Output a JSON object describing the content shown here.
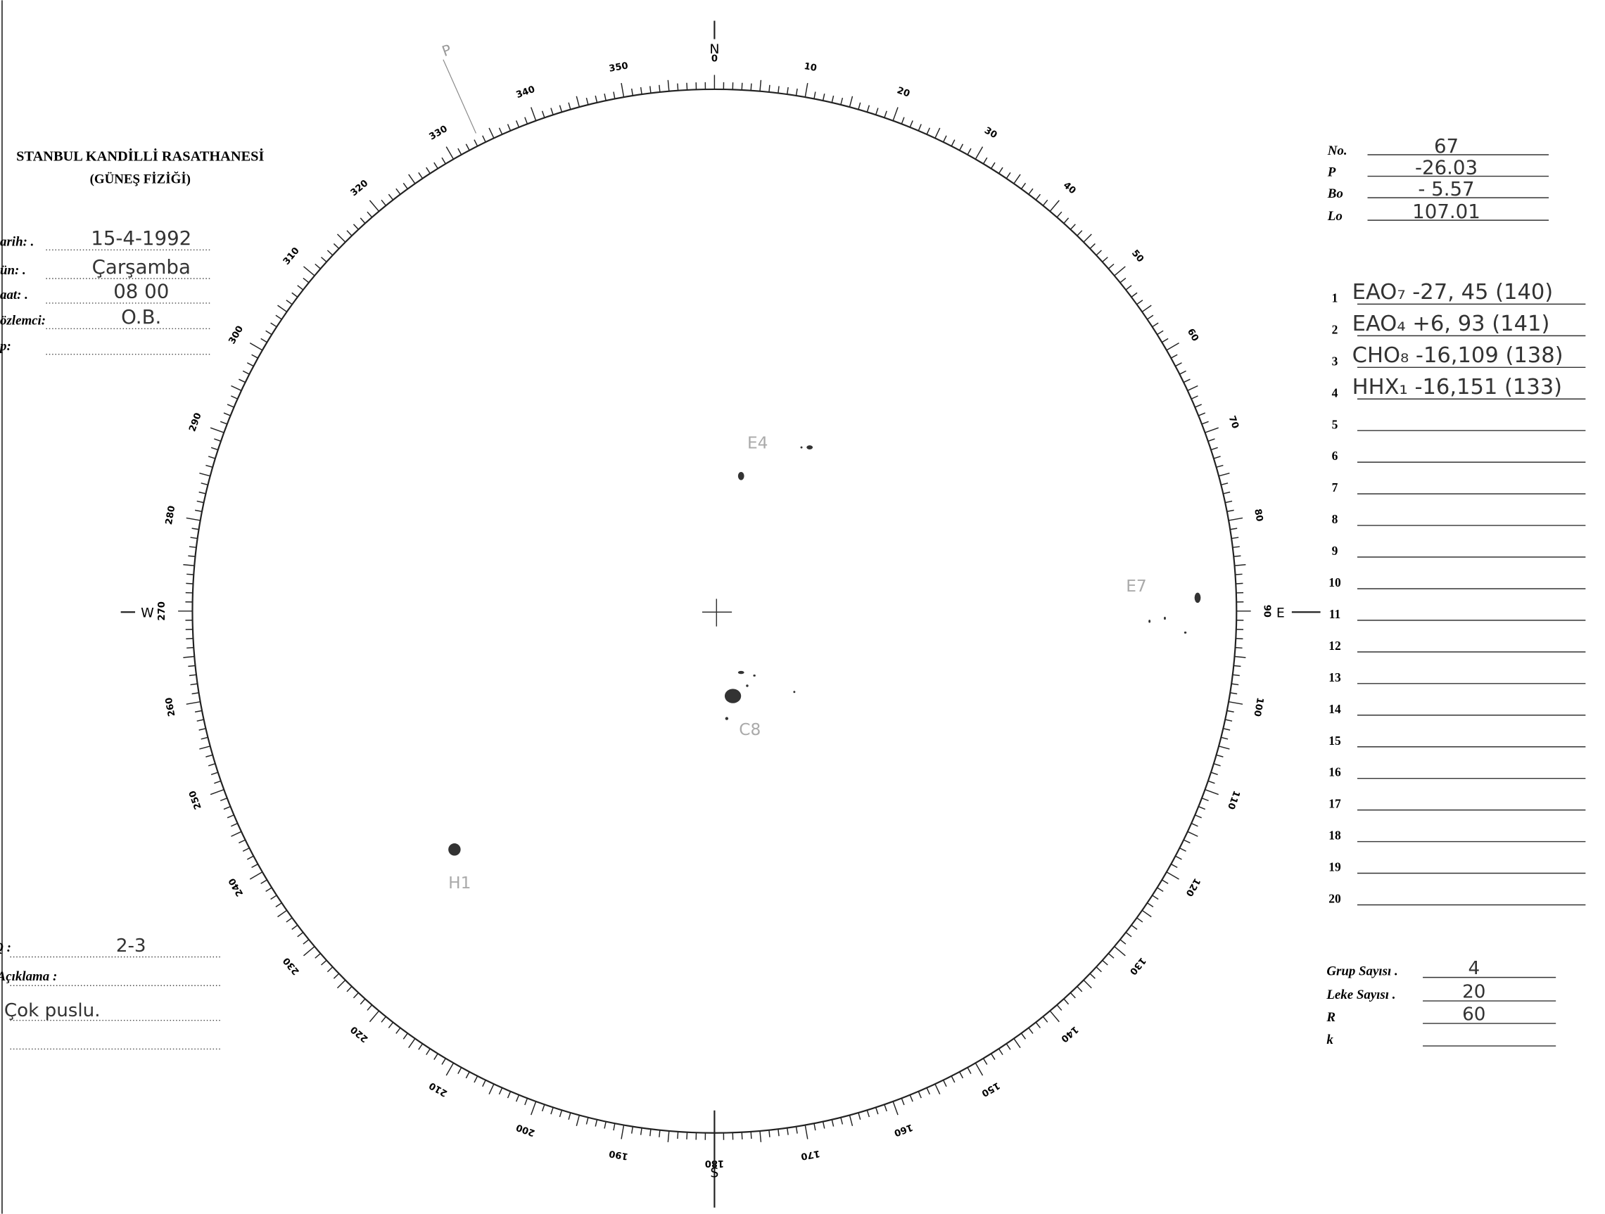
{
  "header": {
    "title": "STANBUL KANDİLLİ RASATHANESİ",
    "subtitle": "(GÜNEŞ FİZİĞİ)"
  },
  "observation": [
    {
      "label": "arih: .",
      "value": "15-4-1992"
    },
    {
      "label": "ün: .",
      "value": "Çarşamba"
    },
    {
      "label": "aat: .",
      "value": "08 00"
    },
    {
      "label": "özlemci:",
      "value": "O.B."
    },
    {
      "label": "p:"
    }
  ],
  "notes": {
    "q_label": "Q :",
    "q_value": "2-3",
    "description_label": "Açıklama :",
    "description": "Çok puslu."
  },
  "parameters": [
    {
      "label": "No.",
      "value": "67"
    },
    {
      "label": "P",
      "value": "-26.03"
    },
    {
      "label": "Bo",
      "value": "- 5.57"
    },
    {
      "label": "Lo",
      "value": "107.01"
    }
  ],
  "groups": [
    {
      "number": "1",
      "entry": "EAO₇ -27, 45 (140)"
    },
    {
      "number": "2",
      "entry": "EAO₄ +6, 93 (141)"
    },
    {
      "number": "3",
      "entry": "CHO₈ -16,109 (138)"
    },
    {
      "number": "4",
      "entry": "HHX₁ -16,151 (133)"
    },
    {
      "number": "5"
    },
    {
      "number": "6"
    },
    {
      "number": "7"
    },
    {
      "number": "8"
    },
    {
      "number": "9"
    },
    {
      "number": "10"
    },
    {
      "number": "11"
    },
    {
      "number": "12"
    },
    {
      "number": "13"
    },
    {
      "number": "14"
    },
    {
      "number": "15"
    },
    {
      "number": "16"
    },
    {
      "number": "17"
    },
    {
      "number": "18"
    },
    {
      "number": "19"
    },
    {
      "number": "20"
    }
  ],
  "totals": [
    {
      "label": "Grup Sayısı .",
      "value": "4"
    },
    {
      "label": "Leke Sayısı .",
      "value": "20"
    },
    {
      "label": "R",
      "value": "60"
    },
    {
      "label": "k"
    }
  ],
  "disk": {
    "degree_labels": [
      0,
      10,
      20,
      30,
      40,
      50,
      60,
      70,
      80,
      90,
      100,
      110,
      120,
      130,
      140,
      150,
      160,
      170,
      180,
      190,
      200,
      210,
      220,
      230,
      240,
      250,
      260,
      270,
      280,
      290,
      300,
      310,
      320,
      330,
      340,
      350
    ],
    "north": "N",
    "south": "S",
    "east": "E",
    "west": "W",
    "pole": "P"
  },
  "sketch_labels": [
    "E4",
    "E7",
    "C8",
    "H1"
  ]
}
